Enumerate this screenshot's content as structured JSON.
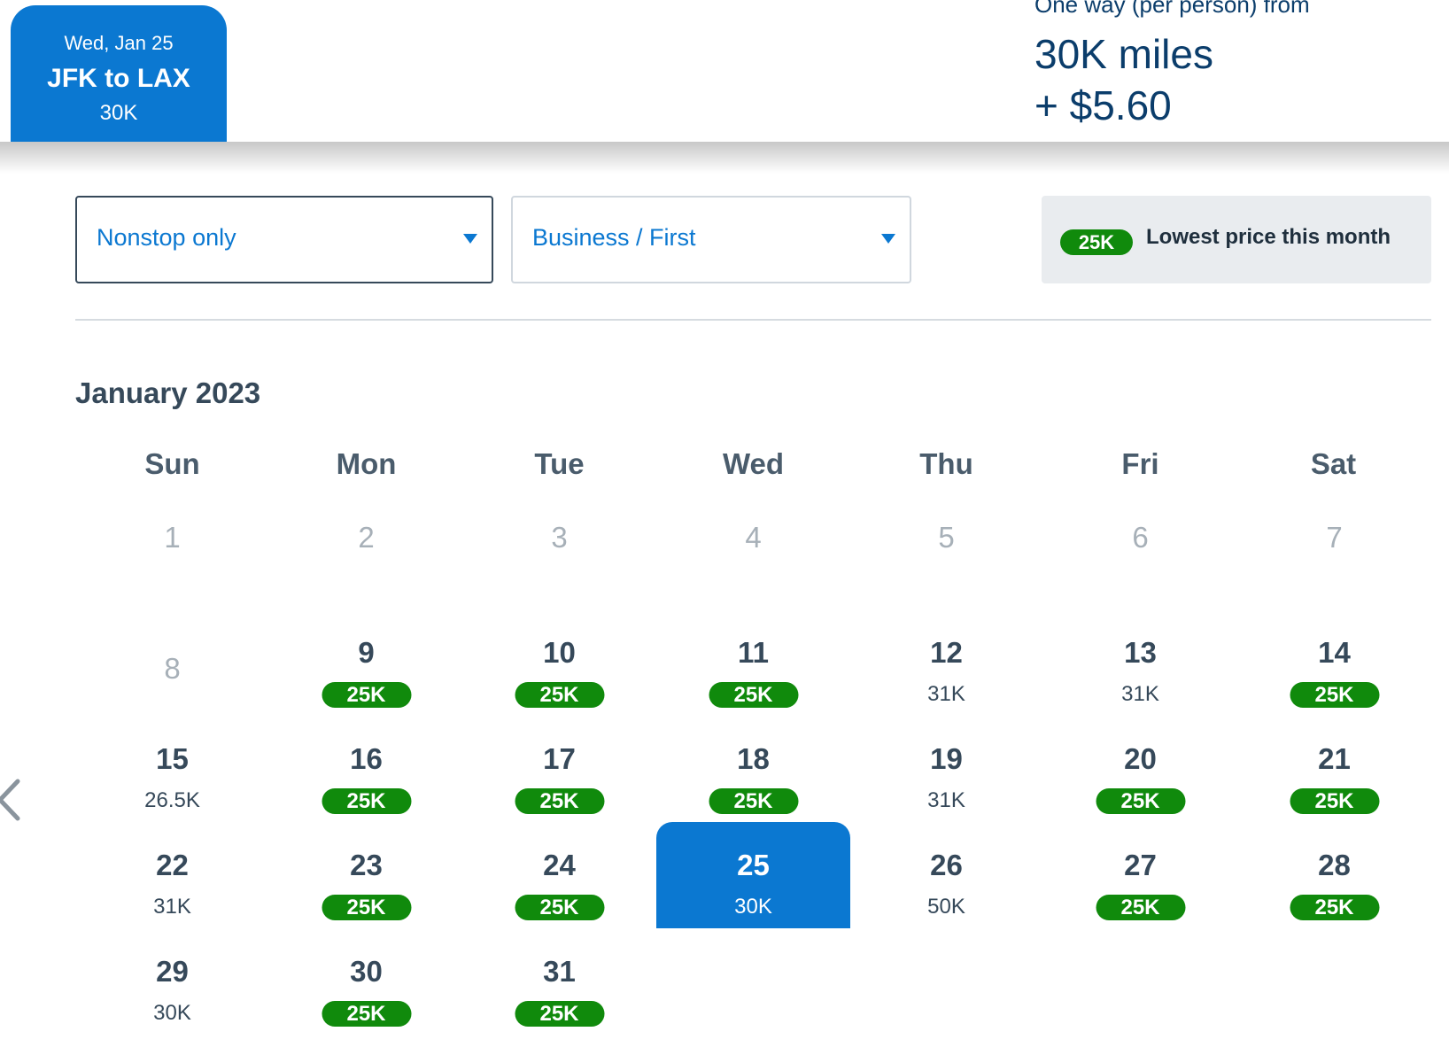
{
  "selected_tab": {
    "date": "Wed, Jan 25",
    "route": "JFK to LAX",
    "price": "30K"
  },
  "fare_summary": {
    "caption": "One way (per person) from",
    "miles": "30K miles",
    "cash": "+ $5.60"
  },
  "filters": {
    "stops": {
      "selected": "Nonstop only"
    },
    "cabin": {
      "selected": "Business / First"
    }
  },
  "legend": {
    "badge": "25K",
    "text": "Lowest price this month"
  },
  "colors": {
    "accent_blue": "#0b78d1",
    "lowest_green": "#108a0c",
    "text_dark": "#36495a",
    "muted": "#a7b0b8"
  },
  "calendar": {
    "month_title": "January 2023",
    "weekdays": [
      "Sun",
      "Mon",
      "Tue",
      "Wed",
      "Thu",
      "Fri",
      "Sat"
    ],
    "days": [
      {
        "day": "1",
        "price": "",
        "lowest": false,
        "disabled": true
      },
      {
        "day": "2",
        "price": "",
        "lowest": false,
        "disabled": true
      },
      {
        "day": "3",
        "price": "",
        "lowest": false,
        "disabled": true
      },
      {
        "day": "4",
        "price": "",
        "lowest": false,
        "disabled": true
      },
      {
        "day": "5",
        "price": "",
        "lowest": false,
        "disabled": true
      },
      {
        "day": "6",
        "price": "",
        "lowest": false,
        "disabled": true
      },
      {
        "day": "7",
        "price": "",
        "lowest": false,
        "disabled": true
      },
      {
        "day": "8",
        "price": "",
        "lowest": false,
        "disabled": true
      },
      {
        "day": "9",
        "price": "25K",
        "lowest": true
      },
      {
        "day": "10",
        "price": "25K",
        "lowest": true
      },
      {
        "day": "11",
        "price": "25K",
        "lowest": true
      },
      {
        "day": "12",
        "price": "31K",
        "lowest": false
      },
      {
        "day": "13",
        "price": "31K",
        "lowest": false
      },
      {
        "day": "14",
        "price": "25K",
        "lowest": true
      },
      {
        "day": "15",
        "price": "26.5K",
        "lowest": false
      },
      {
        "day": "16",
        "price": "25K",
        "lowest": true
      },
      {
        "day": "17",
        "price": "25K",
        "lowest": true
      },
      {
        "day": "18",
        "price": "25K",
        "lowest": true
      },
      {
        "day": "19",
        "price": "31K",
        "lowest": false
      },
      {
        "day": "20",
        "price": "25K",
        "lowest": true
      },
      {
        "day": "21",
        "price": "25K",
        "lowest": true
      },
      {
        "day": "22",
        "price": "31K",
        "lowest": false
      },
      {
        "day": "23",
        "price": "25K",
        "lowest": true
      },
      {
        "day": "24",
        "price": "25K",
        "lowest": true
      },
      {
        "day": "25",
        "price": "30K",
        "lowest": false,
        "selected": true
      },
      {
        "day": "26",
        "price": "50K",
        "lowest": false
      },
      {
        "day": "27",
        "price": "25K",
        "lowest": true
      },
      {
        "day": "28",
        "price": "25K",
        "lowest": true
      },
      {
        "day": "29",
        "price": "30K",
        "lowest": false
      },
      {
        "day": "30",
        "price": "25K",
        "lowest": true
      },
      {
        "day": "31",
        "price": "25K",
        "lowest": true
      }
    ]
  }
}
